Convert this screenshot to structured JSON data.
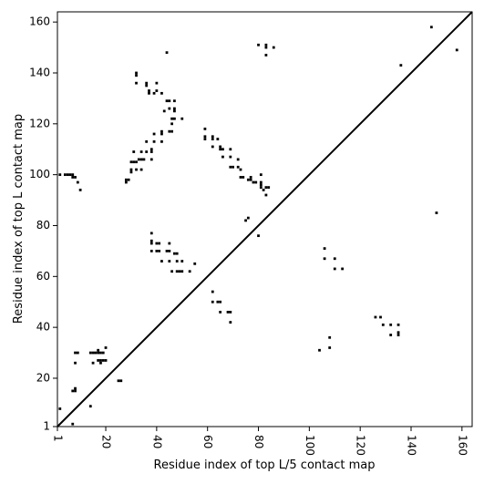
{
  "chart_data": {
    "type": "scatter",
    "xlabel": "Residue index of top L/5 contact map",
    "ylabel": "Residue index of top L contact map",
    "xlim": [
      1,
      164
    ],
    "ylim": [
      1,
      164
    ],
    "x_ticks": [
      1,
      20,
      40,
      60,
      80,
      100,
      120,
      140,
      160
    ],
    "y_ticks": [
      1,
      20,
      40,
      60,
      80,
      100,
      120,
      140,
      160
    ],
    "x_tick_labels": [
      "1",
      "20",
      "40",
      "60",
      "80",
      "100",
      "120",
      "140",
      "160"
    ],
    "y_tick_labels": [
      "1",
      "20",
      "40",
      "60",
      "80",
      "100",
      "120",
      "140",
      "160"
    ],
    "x_tick_rotation": -90,
    "grid": false,
    "marker_color": "#000000",
    "diagonal_line": true,
    "upper_triangle_points": [
      [
        104,
        31
      ],
      [
        108,
        32
      ],
      [
        108,
        36
      ],
      [
        113,
        63
      ],
      [
        110,
        63
      ],
      [
        106,
        67
      ],
      [
        110,
        67
      ],
      [
        106,
        71
      ],
      [
        126,
        44
      ],
      [
        128,
        44
      ],
      [
        129,
        41
      ],
      [
        132,
        37
      ],
      [
        132,
        41
      ],
      [
        135,
        37
      ],
      [
        135,
        38
      ],
      [
        135,
        41
      ],
      [
        150,
        85
      ],
      [
        136,
        143
      ],
      [
        148,
        158
      ],
      [
        158,
        149
      ]
    ],
    "lower_triangle_points": [
      [
        2,
        8
      ],
      [
        7,
        2
      ],
      [
        7,
        15
      ],
      [
        8,
        15
      ],
      [
        8,
        16
      ],
      [
        8,
        26
      ],
      [
        8,
        30
      ],
      [
        9,
        30
      ],
      [
        14,
        9
      ],
      [
        14,
        30
      ],
      [
        15,
        30
      ],
      [
        16,
        30
      ],
      [
        17,
        30
      ],
      [
        18,
        30
      ],
      [
        19,
        30
      ],
      [
        15,
        26
      ],
      [
        17,
        27
      ],
      [
        18,
        27
      ],
      [
        19,
        27
      ],
      [
        20,
        27
      ],
      [
        18,
        26
      ],
      [
        17,
        31
      ],
      [
        20,
        32
      ],
      [
        25,
        19
      ],
      [
        26,
        19
      ],
      [
        2,
        100
      ],
      [
        4,
        100
      ],
      [
        5,
        100
      ],
      [
        6,
        100
      ],
      [
        7,
        99
      ],
      [
        7,
        100
      ],
      [
        8,
        99
      ],
      [
        9,
        97
      ],
      [
        10,
        94
      ],
      [
        28,
        97
      ],
      [
        28,
        98
      ],
      [
        29,
        98
      ],
      [
        30,
        101
      ],
      [
        30,
        102
      ],
      [
        30,
        105
      ],
      [
        31,
        105
      ],
      [
        32,
        102
      ],
      [
        32,
        105
      ],
      [
        33,
        106
      ],
      [
        34,
        102
      ],
      [
        34,
        106
      ],
      [
        35,
        106
      ],
      [
        34,
        109
      ],
      [
        36,
        109
      ],
      [
        36,
        113
      ],
      [
        31,
        109
      ],
      [
        38,
        106
      ],
      [
        38,
        109
      ],
      [
        38,
        110
      ],
      [
        39,
        113
      ],
      [
        39,
        116
      ],
      [
        42,
        113
      ],
      [
        42,
        116
      ],
      [
        42,
        117
      ],
      [
        45,
        117
      ],
      [
        46,
        117
      ],
      [
        46,
        120
      ],
      [
        46,
        122
      ],
      [
        47,
        122
      ],
      [
        47,
        125
      ],
      [
        47,
        126
      ],
      [
        47,
        129
      ],
      [
        50,
        122
      ],
      [
        42,
        132
      ],
      [
        44,
        129
      ],
      [
        45,
        129
      ],
      [
        45,
        126
      ],
      [
        43,
        125
      ],
      [
        39,
        132
      ],
      [
        40,
        133
      ],
      [
        40,
        136
      ],
      [
        37,
        132
      ],
      [
        37,
        133
      ],
      [
        36,
        135
      ],
      [
        36,
        136
      ],
      [
        32,
        136
      ],
      [
        32,
        139
      ],
      [
        32,
        140
      ],
      [
        44,
        148
      ],
      [
        38,
        77
      ],
      [
        38,
        73
      ],
      [
        38,
        74
      ],
      [
        38,
        70
      ],
      [
        40,
        70
      ],
      [
        40,
        73
      ],
      [
        41,
        73
      ],
      [
        41,
        70
      ],
      [
        42,
        66
      ],
      [
        44,
        70
      ],
      [
        45,
        70
      ],
      [
        45,
        73
      ],
      [
        45,
        66
      ],
      [
        46,
        62
      ],
      [
        47,
        69
      ],
      [
        48,
        69
      ],
      [
        48,
        66
      ],
      [
        50,
        66
      ],
      [
        48,
        62
      ],
      [
        49,
        62
      ],
      [
        50,
        62
      ],
      [
        53,
        62
      ],
      [
        55,
        65
      ],
      [
        62,
        54
      ],
      [
        62,
        50
      ],
      [
        64,
        50
      ],
      [
        65,
        50
      ],
      [
        65,
        46
      ],
      [
        68,
        46
      ],
      [
        69,
        46
      ],
      [
        69,
        42
      ],
      [
        59,
        118
      ],
      [
        59,
        115
      ],
      [
        59,
        114
      ],
      [
        62,
        114
      ],
      [
        62,
        115
      ],
      [
        62,
        111
      ],
      [
        64,
        114
      ],
      [
        65,
        111
      ],
      [
        65,
        110
      ],
      [
        66,
        110
      ],
      [
        66,
        107
      ],
      [
        69,
        110
      ],
      [
        69,
        107
      ],
      [
        69,
        103
      ],
      [
        70,
        103
      ],
      [
        72,
        106
      ],
      [
        72,
        103
      ],
      [
        73,
        102
      ],
      [
        73,
        99
      ],
      [
        74,
        99
      ],
      [
        76,
        98
      ],
      [
        77,
        98
      ],
      [
        77,
        99
      ],
      [
        78,
        97
      ],
      [
        79,
        97
      ],
      [
        81,
        100
      ],
      [
        81,
        97
      ],
      [
        81,
        96
      ],
      [
        81,
        95
      ],
      [
        82,
        94
      ],
      [
        83,
        92
      ],
      [
        84,
        95
      ],
      [
        83,
        95
      ],
      [
        75,
        82
      ],
      [
        76,
        83
      ],
      [
        80,
        76
      ],
      [
        80,
        151
      ],
      [
        83,
        151
      ],
      [
        83,
        150
      ],
      [
        83,
        147
      ],
      [
        86,
        150
      ]
    ]
  }
}
